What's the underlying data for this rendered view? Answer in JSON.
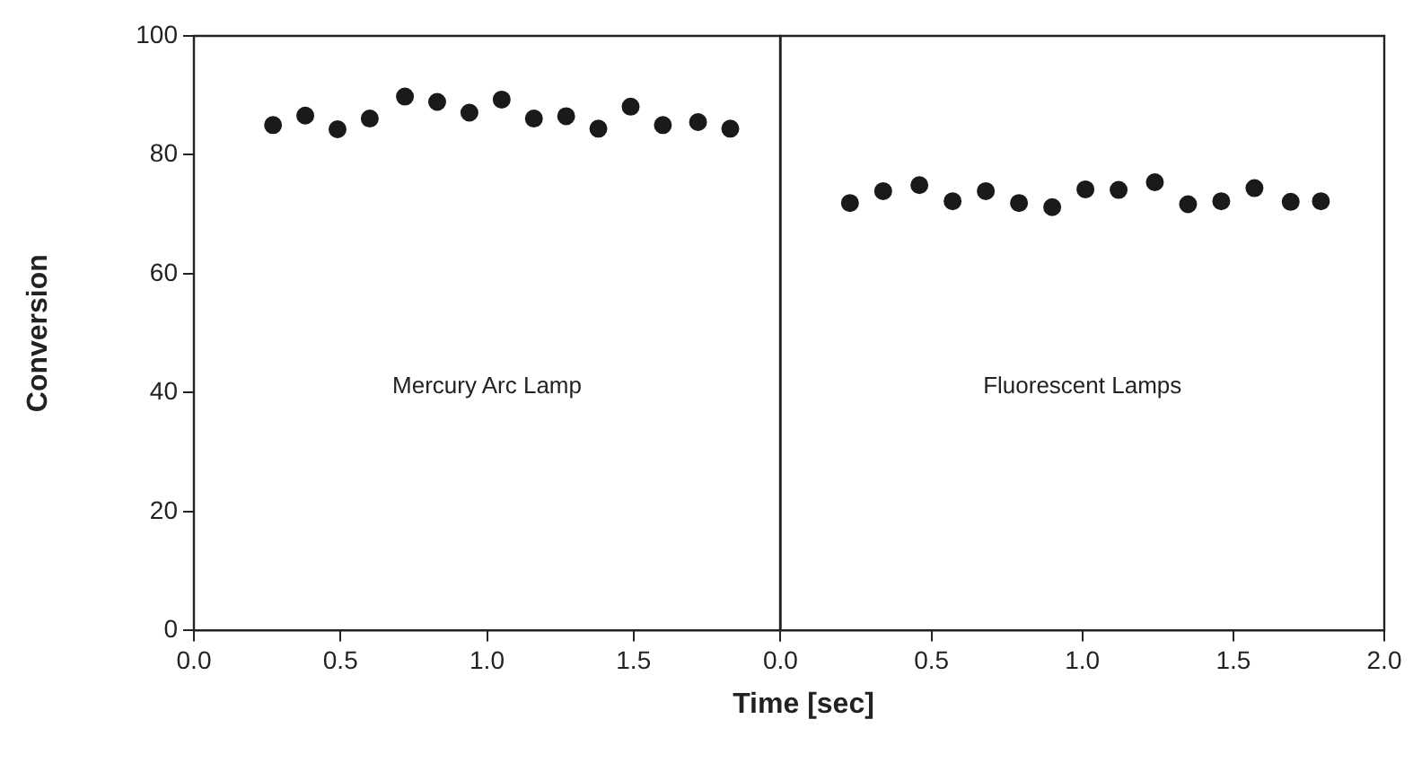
{
  "chart_data": [
    {
      "type": "scatter",
      "ylabel": "Conversion",
      "xlabel": "Time [sec]",
      "annotations": [
        "Mercury Arc Lamp"
      ],
      "marker": "circle",
      "grid": false,
      "xlim": [
        0,
        2
      ],
      "xticks": [
        {
          "value": 0,
          "label": "0.0"
        },
        {
          "value": 0.5,
          "label": "0.5"
        },
        {
          "value": 1,
          "label": "1.0"
        },
        {
          "value": 1.5,
          "label": "1.5"
        },
        {
          "value": 2,
          "label": null
        }
      ],
      "ylim": [
        0,
        100
      ],
      "yticks": [
        0,
        20,
        40,
        60,
        80,
        100
      ],
      "series": [
        {
          "color": "#1a1a1a",
          "x": [
            0.27,
            0.38,
            0.49,
            0.6,
            0.72,
            0.83,
            0.94,
            1.05,
            1.16,
            1.27,
            1.38,
            1.49,
            1.6,
            1.72,
            1.83
          ],
          "values": [
            85,
            86.6,
            84.3,
            86.1,
            89.8,
            88.9,
            87.1,
            89.3,
            86.1,
            86.5,
            84.4,
            88.1,
            85,
            85.5,
            84.4
          ]
        }
      ]
    },
    {
      "type": "scatter",
      "annotations": [
        "Fluorescent Lamps"
      ],
      "marker": "circle",
      "grid": false,
      "tick_labels": "x",
      "xlim": [
        0,
        2
      ],
      "xticks": [
        {
          "value": 0,
          "label": "0.0"
        },
        {
          "value": 0.5,
          "label": "0.5"
        },
        {
          "value": 1,
          "label": "1.0"
        },
        {
          "value": 1.5,
          "label": "1.5"
        },
        {
          "value": 2,
          "label": "2.0"
        }
      ],
      "ylim": [
        0,
        100
      ],
      "yticks": [
        0,
        20,
        40,
        60,
        80,
        100
      ],
      "series": [
        {
          "color": "#1a1a1a",
          "x": [
            0.23,
            0.34,
            0.46,
            0.57,
            0.68,
            0.79,
            0.9,
            1.01,
            1.12,
            1.24,
            1.35,
            1.46,
            1.57,
            1.69,
            1.79
          ],
          "values": [
            71.9,
            73.9,
            74.9,
            72.2,
            73.9,
            71.9,
            71.2,
            74.2,
            74.1,
            75.4,
            71.7,
            72.2,
            74.4,
            72.1,
            72.2
          ]
        }
      ]
    }
  ]
}
